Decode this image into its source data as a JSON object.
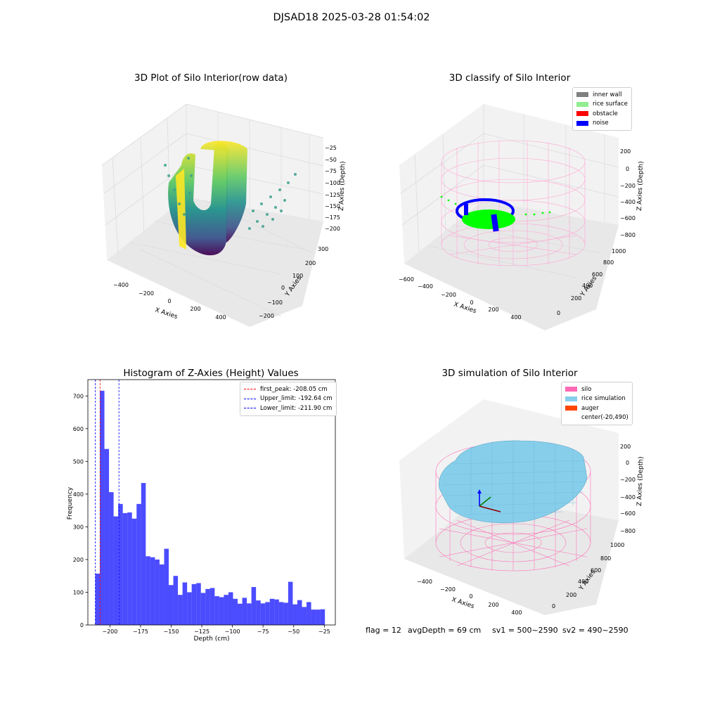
{
  "figure": {
    "suptitle": "DJSAD18 2025-03-28 01:54:02",
    "status": {
      "flag": "flag = 12",
      "avg_depth": "avgDepth = 69 cm",
      "sv1": "sv1 = 500~2590",
      "sv2": "sv2 = 490~2590"
    }
  },
  "panel_raw": {
    "title": "3D Plot of Silo Interior(row data)",
    "xlabel": "X Axies",
    "ylabel": "Y Axies",
    "zlabel": "Z Axies (Depth)",
    "xticks": [
      "−400",
      "−200",
      "0",
      "200",
      "400"
    ],
    "yticks": [
      "−200",
      "−100",
      "0",
      "100",
      "200",
      "300"
    ],
    "zticks": [
      "−25",
      "−50",
      "−75",
      "−100",
      "−125",
      "−150",
      "−175",
      "−200"
    ]
  },
  "panel_classify": {
    "title": "3D classify of Silo Interior",
    "xlabel": "X Axies",
    "ylabel": "Y Axies",
    "zlabel": "Z Axies (Depth)",
    "xticks": [
      "−600",
      "−400",
      "−200",
      "0",
      "200",
      "400"
    ],
    "yticks": [
      "0",
      "200",
      "400",
      "600",
      "800",
      "1000"
    ],
    "zticks": [
      "200",
      "0",
      "−200",
      "−400",
      "−600",
      "−800"
    ],
    "legend": [
      {
        "label": "inner wall",
        "color": "#808080"
      },
      {
        "label": "rice surface",
        "color": "#90ee90"
      },
      {
        "label": "obstacle",
        "color": "#ff0000"
      },
      {
        "label": "noise",
        "color": "#0000ff"
      }
    ]
  },
  "panel_sim": {
    "title": "3D simulation of Silo Interior",
    "xlabel": "X Axies",
    "ylabel": "Y Axies",
    "zlabel": "Z Axies (Depth)",
    "xticks": [
      "−400",
      "−200",
      "0",
      "200",
      "400"
    ],
    "yticks": [
      "0",
      "200",
      "400",
      "600",
      "800",
      "1000"
    ],
    "zticks": [
      "200",
      "0",
      "−200",
      "−400",
      "−600",
      "−800"
    ],
    "legend": [
      {
        "label": "silo",
        "color": "#ff69b4"
      },
      {
        "label": "rice simulation",
        "color": "#87ceeb"
      },
      {
        "label": "auger",
        "color": "#ff4500"
      },
      {
        "label": "center(-20,490)",
        "color": "#ffffff"
      }
    ]
  },
  "chart_data": [
    {
      "type": "bar",
      "title": "Histogram of Z-Axies (Height) Values",
      "xlabel": "Depth (cm)",
      "ylabel": "Frequency",
      "xlim": [
        -218,
        -16
      ],
      "ylim": [
        0,
        750
      ],
      "xticks": [
        -200,
        -175,
        -150,
        -125,
        -100,
        -75,
        -50,
        -25
      ],
      "xtick_labels": [
        "−200",
        "−175",
        "−150",
        "−125",
        "−100",
        "−75",
        "−50",
        "−25"
      ],
      "yticks": [
        0,
        100,
        200,
        300,
        400,
        500,
        600,
        700
      ],
      "bin_start": -212,
      "bin_width": 3.75,
      "color": "#0000ff",
      "values": [
        157,
        716,
        538,
        406,
        332,
        370,
        342,
        344,
        325,
        370,
        434,
        210,
        207,
        200,
        185,
        233,
        122,
        150,
        92,
        130,
        100,
        125,
        128,
        98,
        110,
        113,
        88,
        85,
        92,
        100,
        80,
        65,
        83,
        66,
        116,
        75,
        66,
        70,
        80,
        78,
        70,
        68,
        132,
        63,
        76,
        55,
        70,
        47,
        47,
        48
      ],
      "lines": [
        {
          "label": "first_peak: -208.05 cm",
          "x": -208.05,
          "color": "#ff0000"
        },
        {
          "label": "Upper_limit: -192.64 cm",
          "x": -192.64,
          "color": "#0000ff"
        },
        {
          "label": "Lower_limit: -211.90 cm",
          "x": -211.9,
          "color": "#0000ff"
        }
      ]
    }
  ]
}
